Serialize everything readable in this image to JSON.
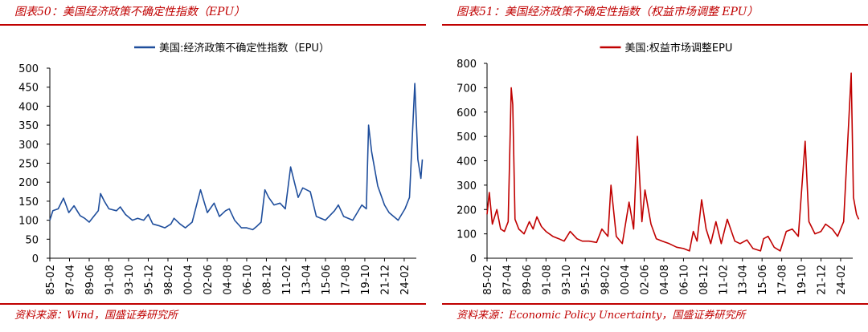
{
  "charts": [
    {
      "figure_title": "图表50：美国经济政策不确定性指数（EPU）",
      "source": "资料来源：Wind，国盛证券研究所",
      "color": "#1f4e9c"
    },
    {
      "figure_title": "图表51：美国经济政策不确定性指数（权益市场调整 EPU）",
      "source": "资料来源：Economic Policy Uncertainty，国盛证券研究所",
      "color": "#c00000"
    }
  ],
  "chart_data": [
    {
      "type": "line",
      "legend_placement": "top-center",
      "grid": false,
      "ylim": [
        0,
        500
      ],
      "yticks": [
        0,
        50,
        100,
        150,
        200,
        250,
        300,
        350,
        400,
        450,
        500
      ],
      "xlim": [
        "1985-02",
        "2025-06"
      ],
      "xtick_labels": [
        "85-02",
        "87-04",
        "89-06",
        "91-08",
        "93-10",
        "95-12",
        "98-02",
        "00-04",
        "02-06",
        "04-08",
        "06-10",
        "08-12",
        "11-02",
        "13-04",
        "15-06",
        "17-08",
        "19-10",
        "21-12",
        "24-02"
      ],
      "series": [
        {
          "name": "美国:经济政策不确定性指数（EPU）",
          "points": [
            [
              "1985-02",
              100
            ],
            [
              "1985-06",
              125
            ],
            [
              "1986-01",
              130
            ],
            [
              "1986-08",
              158
            ],
            [
              "1987-03",
              120
            ],
            [
              "1987-10",
              138
            ],
            [
              "1988-06",
              112
            ],
            [
              "1988-12",
              105
            ],
            [
              "1989-06",
              95
            ],
            [
              "1989-12",
              110
            ],
            [
              "1990-06",
              125
            ],
            [
              "1990-09",
              170
            ],
            [
              "1991-02",
              150
            ],
            [
              "1991-08",
              130
            ],
            [
              "1992-06",
              125
            ],
            [
              "1992-11",
              135
            ],
            [
              "1993-06",
              115
            ],
            [
              "1994-03",
              100
            ],
            [
              "1994-10",
              105
            ],
            [
              "1995-06",
              100
            ],
            [
              "1995-12",
              115
            ],
            [
              "1996-06",
              90
            ],
            [
              "1997-03",
              85
            ],
            [
              "1997-10",
              80
            ],
            [
              "1998-06",
              90
            ],
            [
              "1998-10",
              105
            ],
            [
              "1999-06",
              90
            ],
            [
              "2000-01",
              80
            ],
            [
              "2000-10",
              95
            ],
            [
              "2001-09",
              180
            ],
            [
              "2002-06",
              120
            ],
            [
              "2003-03",
              145
            ],
            [
              "2003-10",
              110
            ],
            [
              "2004-06",
              125
            ],
            [
              "2004-11",
              130
            ],
            [
              "2005-06",
              100
            ],
            [
              "2006-03",
              80
            ],
            [
              "2006-10",
              80
            ],
            [
              "2007-06",
              75
            ],
            [
              "2007-12",
              85
            ],
            [
              "2008-05",
              95
            ],
            [
              "2008-10",
              180
            ],
            [
              "2009-03",
              160
            ],
            [
              "2009-10",
              140
            ],
            [
              "2010-06",
              145
            ],
            [
              "2011-01",
              130
            ],
            [
              "2011-08",
              240
            ],
            [
              "2012-06",
              160
            ],
            [
              "2012-12",
              185
            ],
            [
              "2013-10",
              175
            ],
            [
              "2014-06",
              110
            ],
            [
              "2015-06",
              100
            ],
            [
              "2016-06",
              125
            ],
            [
              "2016-11",
              140
            ],
            [
              "2017-06",
              110
            ],
            [
              "2018-06",
              100
            ],
            [
              "2019-06",
              140
            ],
            [
              "2019-12",
              130
            ],
            [
              "2020-03",
              350
            ],
            [
              "2020-07",
              280
            ],
            [
              "2021-03",
              190
            ],
            [
              "2021-12",
              140
            ],
            [
              "2022-06",
              120
            ],
            [
              "2023-06",
              100
            ],
            [
              "2024-03",
              130
            ],
            [
              "2024-09",
              160
            ],
            [
              "2025-04",
              460
            ],
            [
              "2025-08",
              260
            ],
            [
              "2025-12",
              210
            ],
            [
              "2026-02",
              260
            ]
          ]
        }
      ]
    },
    {
      "type": "line",
      "legend_placement": "top-center",
      "grid": false,
      "ylim": [
        0,
        800
      ],
      "yticks": [
        0,
        100,
        200,
        300,
        400,
        500,
        600,
        700,
        800
      ],
      "xlim": [
        "1985-02",
        "2025-06"
      ],
      "xtick_labels": [
        "85-02",
        "87-04",
        "89-06",
        "91-08",
        "93-10",
        "95-12",
        "98-02",
        "00-04",
        "02-06",
        "04-08",
        "06-10",
        "08-12",
        "11-02",
        "13-04",
        "15-06",
        "17-08",
        "19-10",
        "21-12",
        "24-02"
      ],
      "series": [
        {
          "name": "美国:权益市场调整EPU",
          "points": [
            [
              "1985-02",
              180
            ],
            [
              "1985-05",
              270
            ],
            [
              "1985-09",
              140
            ],
            [
              "1986-03",
              200
            ],
            [
              "1986-08",
              120
            ],
            [
              "1987-01",
              110
            ],
            [
              "1987-06",
              150
            ],
            [
              "1987-10",
              700
            ],
            [
              "1987-12",
              630
            ],
            [
              "1988-03",
              160
            ],
            [
              "1988-08",
              120
            ],
            [
              "1989-03",
              100
            ],
            [
              "1989-10",
              150
            ],
            [
              "1990-03",
              120
            ],
            [
              "1990-08",
              170
            ],
            [
              "1991-02",
              130
            ],
            [
              "1991-08",
              110
            ],
            [
              "1992-05",
              90
            ],
            [
              "1993-01",
              80
            ],
            [
              "1993-08",
              70
            ],
            [
              "1994-04",
              110
            ],
            [
              "1995-01",
              80
            ],
            [
              "1995-08",
              70
            ],
            [
              "1996-05",
              70
            ],
            [
              "1997-03",
              65
            ],
            [
              "1997-10",
              120
            ],
            [
              "1998-06",
              90
            ],
            [
              "1998-10",
              300
            ],
            [
              "1999-05",
              90
            ],
            [
              "2000-01",
              60
            ],
            [
              "2000-10",
              230
            ],
            [
              "2001-04",
              120
            ],
            [
              "2001-09",
              500
            ],
            [
              "2002-03",
              150
            ],
            [
              "2002-07",
              280
            ],
            [
              "2003-03",
              140
            ],
            [
              "2003-10",
              80
            ],
            [
              "2004-06",
              70
            ],
            [
              "2005-03",
              60
            ],
            [
              "2006-01",
              45
            ],
            [
              "2006-10",
              40
            ],
            [
              "2007-06",
              30
            ],
            [
              "2007-11",
              110
            ],
            [
              "2008-04",
              70
            ],
            [
              "2008-10",
              240
            ],
            [
              "2009-04",
              120
            ],
            [
              "2009-10",
              60
            ],
            [
              "2010-05",
              150
            ],
            [
              "2010-12",
              60
            ],
            [
              "2011-08",
              160
            ],
            [
              "2012-06",
              70
            ],
            [
              "2013-01",
              60
            ],
            [
              "2013-10",
              75
            ],
            [
              "2014-06",
              40
            ],
            [
              "2015-04",
              30
            ],
            [
              "2015-08",
              80
            ],
            [
              "2016-02",
              90
            ],
            [
              "2016-10",
              45
            ],
            [
              "2017-06",
              30
            ],
            [
              "2018-02",
              110
            ],
            [
              "2018-10",
              120
            ],
            [
              "2019-06",
              90
            ],
            [
              "2020-03",
              480
            ],
            [
              "2020-08",
              150
            ],
            [
              "2021-04",
              100
            ],
            [
              "2021-12",
              110
            ],
            [
              "2022-06",
              140
            ],
            [
              "2023-03",
              120
            ],
            [
              "2023-10",
              90
            ],
            [
              "2024-06",
              150
            ],
            [
              "2025-04",
              760
            ],
            [
              "2025-07",
              250
            ],
            [
              "2025-11",
              180
            ],
            [
              "2026-02",
              160
            ]
          ]
        }
      ]
    }
  ]
}
